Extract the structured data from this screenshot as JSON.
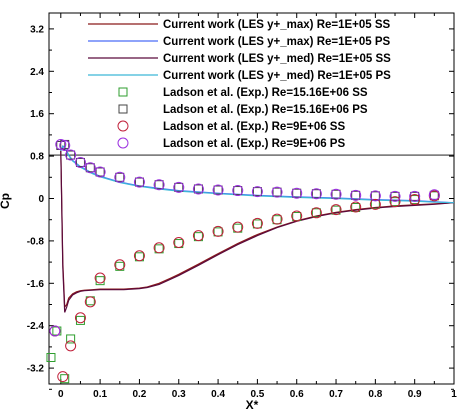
{
  "chart_data": {
    "type": "line",
    "xlabel": "X*",
    "ylabel": "Cp",
    "xlim": [
      -0.03,
      1.0
    ],
    "ylim": [
      -3.5,
      3.5
    ],
    "y_reversed": true,
    "grid": false,
    "legend_position": "top-right",
    "x_ticks": [
      0,
      0.1,
      0.2,
      0.3,
      0.4,
      0.5,
      0.6,
      0.7,
      0.8,
      0.9,
      1
    ],
    "x_tick_labels": [
      "0",
      "0.1",
      "0.2",
      "0.3",
      "0.4",
      "0.5",
      "0.6",
      "0.7",
      "0.8",
      "0.9",
      "1"
    ],
    "y_ticks": [
      3.2,
      2.4,
      1.6,
      0.8,
      0,
      -0.8,
      -1.6,
      -2.4,
      -3.2
    ],
    "y_tick_labels": [
      "3.2",
      "2.4",
      "1.6",
      "0.8",
      "0",
      "-0.8",
      "-1.6",
      "-2.4",
      "-3.2"
    ],
    "horizontal_reference_line": 0.82,
    "series": [
      {
        "name": "Current work (LES y+_max) Re=1E+05 SS",
        "style": "line",
        "color": "#8b1a1a",
        "x": [
          0.0,
          0.005,
          0.01,
          0.015,
          0.02,
          0.03,
          0.04,
          0.05,
          0.06,
          0.08,
          0.1,
          0.12,
          0.14,
          0.16,
          0.18,
          0.2,
          0.22,
          0.25,
          0.28,
          0.3,
          0.35,
          0.4,
          0.45,
          0.5,
          0.55,
          0.6,
          0.65,
          0.7,
          0.75,
          0.8,
          0.85,
          0.9,
          0.95,
          1.0
        ],
        "y": [
          0.9,
          -1.2,
          -2.05,
          -2.0,
          -1.88,
          -1.8,
          -1.76,
          -1.74,
          -1.73,
          -1.72,
          -1.71,
          -1.71,
          -1.71,
          -1.71,
          -1.7,
          -1.69,
          -1.67,
          -1.6,
          -1.5,
          -1.43,
          -1.24,
          -1.04,
          -0.85,
          -0.68,
          -0.54,
          -0.42,
          -0.33,
          -0.26,
          -0.21,
          -0.17,
          -0.14,
          -0.12,
          -0.1,
          -0.08
        ]
      },
      {
        "name": "Current work (LES y+_max) Re=1E+05 PS",
        "style": "line",
        "color": "#4a6cf7",
        "x": [
          0.0,
          0.005,
          0.01,
          0.015,
          0.02,
          0.03,
          0.05,
          0.08,
          0.1,
          0.15,
          0.2,
          0.25,
          0.3,
          0.4,
          0.5,
          0.6,
          0.7,
          0.8,
          0.9,
          0.95,
          1.0
        ],
        "y": [
          0.9,
          0.99,
          0.97,
          0.9,
          0.82,
          0.72,
          0.6,
          0.48,
          0.42,
          0.31,
          0.24,
          0.19,
          0.15,
          0.1,
          0.06,
          0.03,
          0.01,
          -0.02,
          -0.04,
          -0.06,
          -0.08
        ]
      },
      {
        "name": "Current work (LES y+_med) Re=1E+05 SS",
        "style": "line",
        "color": "#5a0a3c",
        "x": [
          0.0,
          0.005,
          0.01,
          0.015,
          0.02,
          0.03,
          0.04,
          0.05,
          0.06,
          0.08,
          0.1,
          0.12,
          0.14,
          0.16,
          0.18,
          0.2,
          0.22,
          0.25,
          0.28,
          0.3,
          0.35,
          0.4,
          0.45,
          0.5,
          0.55,
          0.6,
          0.65,
          0.7,
          0.75,
          0.8,
          0.85,
          0.9,
          0.95,
          1.0
        ],
        "y": [
          0.9,
          -1.3,
          -2.15,
          -2.05,
          -1.92,
          -1.82,
          -1.78,
          -1.75,
          -1.74,
          -1.73,
          -1.72,
          -1.72,
          -1.72,
          -1.72,
          -1.71,
          -1.7,
          -1.68,
          -1.62,
          -1.52,
          -1.45,
          -1.26,
          -1.06,
          -0.87,
          -0.7,
          -0.55,
          -0.43,
          -0.34,
          -0.27,
          -0.22,
          -0.18,
          -0.15,
          -0.13,
          -0.11,
          -0.08
        ]
      },
      {
        "name": "Current work (LES y+_med) Re=1E+05 PS",
        "style": "line",
        "color": "#3cb8d8",
        "x": [
          0.0,
          0.005,
          0.01,
          0.015,
          0.02,
          0.03,
          0.05,
          0.08,
          0.1,
          0.15,
          0.2,
          0.25,
          0.3,
          0.4,
          0.5,
          0.6,
          0.7,
          0.8,
          0.9,
          0.95,
          1.0
        ],
        "y": [
          0.9,
          0.98,
          0.96,
          0.89,
          0.81,
          0.71,
          0.59,
          0.47,
          0.41,
          0.3,
          0.23,
          0.18,
          0.14,
          0.09,
          0.05,
          0.02,
          0.0,
          -0.03,
          -0.05,
          -0.07,
          -0.08
        ]
      },
      {
        "name": "Ladson et al. (Exp.) Re=15.16E+06 SS",
        "style": "square",
        "color": "#2e9e2e",
        "x": [
          -0.025,
          -0.01,
          0.01,
          0.025,
          0.05,
          0.075,
          0.1,
          0.15,
          0.2,
          0.25,
          0.3,
          0.35,
          0.4,
          0.45,
          0.5,
          0.55,
          0.6,
          0.65,
          0.7,
          0.75,
          0.8,
          0.85,
          0.9,
          0.95
        ],
        "y": [
          -3.0,
          -2.5,
          -3.4,
          -2.65,
          -2.3,
          -1.93,
          -1.55,
          -1.28,
          -1.1,
          -0.95,
          -0.85,
          -0.72,
          -0.63,
          -0.56,
          -0.48,
          -0.4,
          -0.34,
          -0.27,
          -0.22,
          -0.17,
          -0.11,
          -0.06,
          -0.02,
          0.05
        ]
      },
      {
        "name": "Ladson et al. (Exp.) Re=15.16E+06 PS",
        "style": "square",
        "color": "#444444",
        "x": [
          0.0,
          0.01,
          0.025,
          0.05,
          0.075,
          0.1,
          0.15,
          0.2,
          0.25,
          0.3,
          0.35,
          0.4,
          0.45,
          0.5,
          0.55,
          0.6,
          0.65,
          0.7,
          0.75,
          0.8,
          0.85,
          0.9,
          0.95
        ],
        "y": [
          1.0,
          1.02,
          0.82,
          0.68,
          0.58,
          0.5,
          0.4,
          0.31,
          0.26,
          0.21,
          0.18,
          0.16,
          0.15,
          0.13,
          0.12,
          0.1,
          0.09,
          0.08,
          0.06,
          0.05,
          0.04,
          0.04,
          0.06
        ]
      },
      {
        "name": "Ladson et al. (Exp.) Re=9E+06 SS",
        "style": "circle",
        "color": "#c0203a",
        "x": [
          -0.015,
          0.005,
          0.025,
          0.05,
          0.075,
          0.1,
          0.15,
          0.2,
          0.25,
          0.3,
          0.35,
          0.4,
          0.45,
          0.5,
          0.55,
          0.6,
          0.65,
          0.7,
          0.75,
          0.8,
          0.85,
          0.9,
          0.95
        ],
        "y": [
          -2.5,
          -3.36,
          -2.78,
          -2.25,
          -1.95,
          -1.5,
          -1.25,
          -1.08,
          -0.93,
          -0.83,
          -0.7,
          -0.62,
          -0.54,
          -0.47,
          -0.39,
          -0.33,
          -0.27,
          -0.21,
          -0.16,
          -0.11,
          -0.06,
          -0.02,
          0.05
        ]
      },
      {
        "name": "Ladson et al. (Exp.) Re=9E+06 PS",
        "style": "circle",
        "color": "#9a2ee0",
        "x": [
          -0.015,
          0.0,
          0.01,
          0.025,
          0.05,
          0.075,
          0.1,
          0.15,
          0.2,
          0.25,
          0.3,
          0.35,
          0.4,
          0.45,
          0.5,
          0.55,
          0.6,
          0.65,
          0.7,
          0.75,
          0.8,
          0.85,
          0.9,
          0.95
        ],
        "y": [
          -2.5,
          1.02,
          1.0,
          0.82,
          0.68,
          0.58,
          0.5,
          0.4,
          0.31,
          0.26,
          0.21,
          0.18,
          0.16,
          0.15,
          0.13,
          0.12,
          0.1,
          0.09,
          0.08,
          0.06,
          0.05,
          0.04,
          0.04,
          0.07
        ]
      }
    ]
  }
}
